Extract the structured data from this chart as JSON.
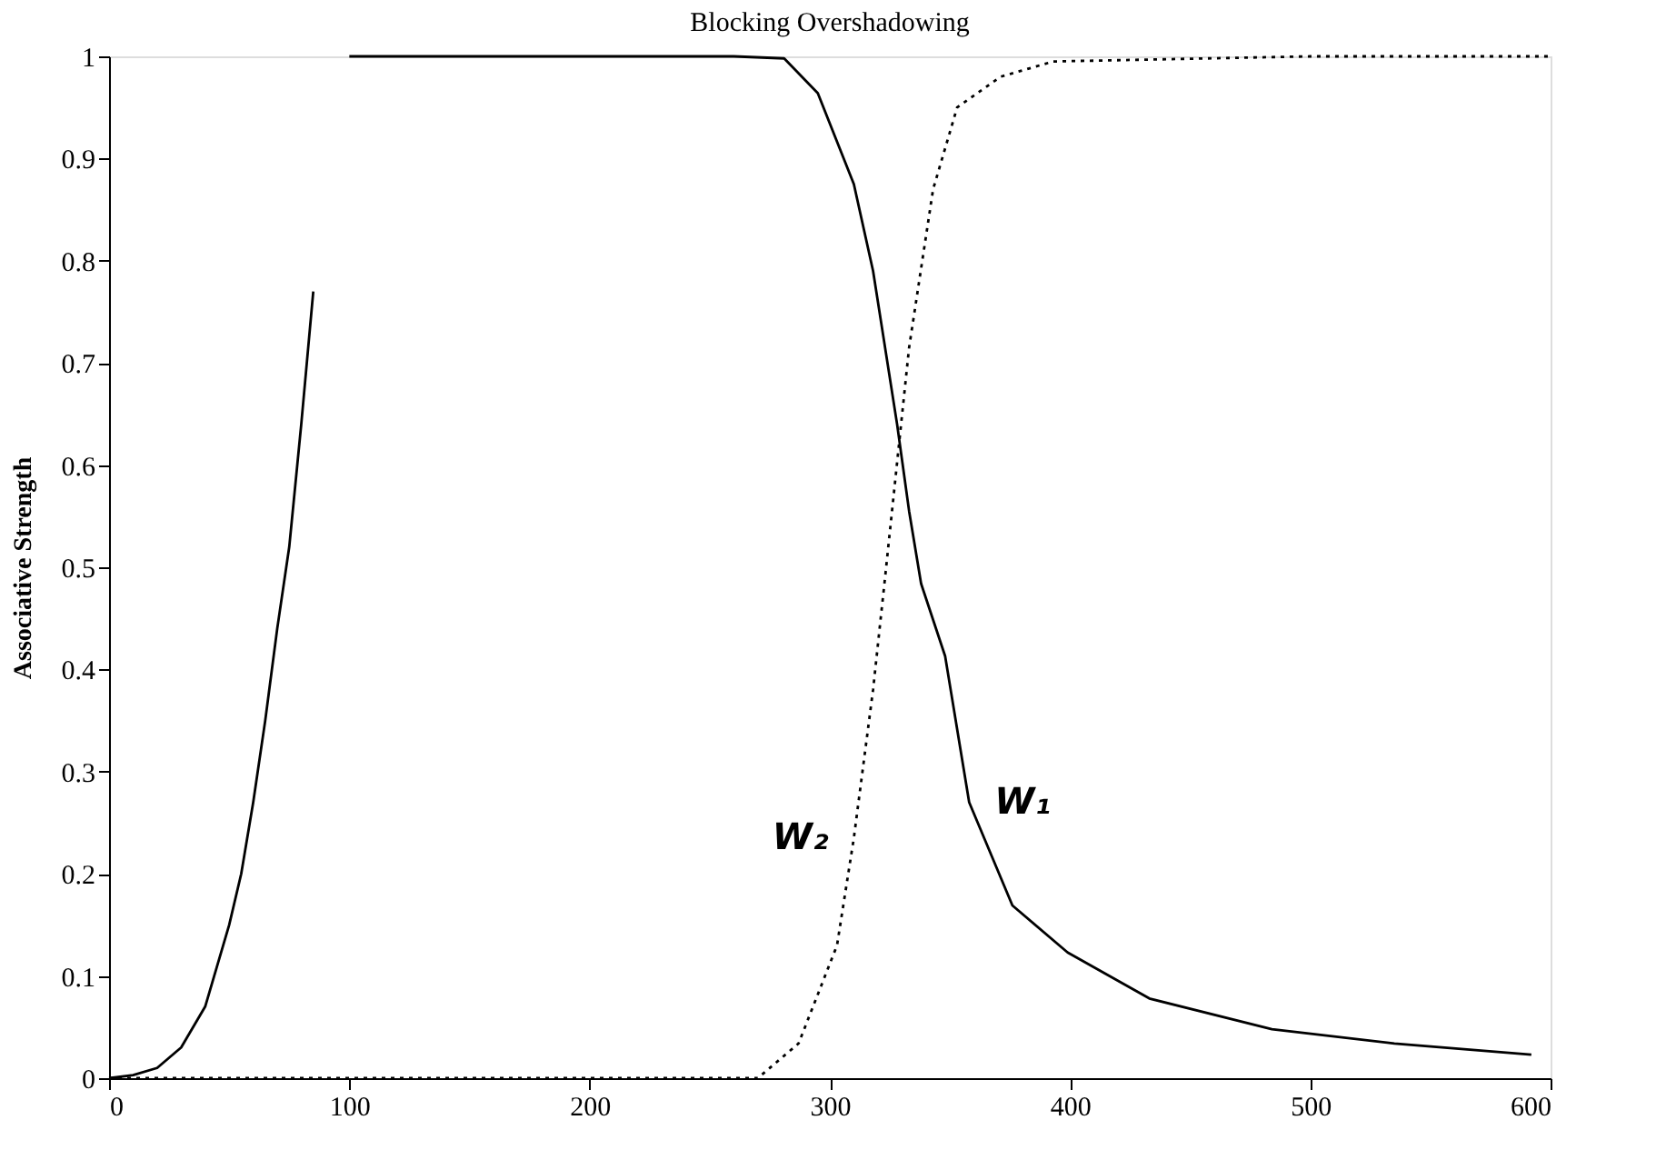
{
  "chart_data": {
    "type": "line",
    "title": "Blocking   Overshadowing",
    "ylabel": "Associative Strength",
    "xlim": [
      0,
      600
    ],
    "xticks": [
      0,
      100,
      200,
      300,
      400,
      500,
      600
    ],
    "ylim": [
      0,
      1
    ],
    "yticks": [
      0,
      0.1,
      0.2,
      0.3,
      0.4,
      0.5,
      0.6,
      0.7,
      0.8,
      0.9,
      1
    ],
    "grid": false,
    "series": [
      {
        "name": "W₁",
        "color": "#000000",
        "line_style": "solid",
        "x": [
          0,
          10,
          20,
          30,
          40,
          50,
          55,
          60,
          65,
          70,
          75,
          80,
          85,
          92,
          100,
          200,
          260,
          281,
          295,
          310,
          318,
          328,
          333,
          338,
          348,
          358,
          376,
          399,
          433,
          484,
          535,
          592
        ],
        "values": [
          0,
          0.003,
          0.01,
          0.03,
          0.07,
          0.15,
          0.2,
          0.27,
          0.35,
          0.44,
          0.52,
          0.64,
          0.77,
          null,
          1,
          1,
          1,
          0.998,
          0.964,
          0.875,
          0.79,
          0.64,
          0.555,
          0.484,
          0.413,
          0.27,
          0.169,
          0.123,
          0.078,
          0.048,
          0.034,
          0.023
        ]
      },
      {
        "name": "W₂",
        "color": "#000000",
        "line_style": "dotted",
        "x": [
          0,
          100,
          200,
          270,
          287,
          303,
          310,
          318,
          323,
          333,
          343,
          353,
          371,
          393,
          500,
          600
        ],
        "values": [
          0,
          0,
          0,
          0,
          0.034,
          0.13,
          0.235,
          0.38,
          0.49,
          0.715,
          0.87,
          0.95,
          0.98,
          0.995,
          1,
          1
        ]
      }
    ]
  }
}
